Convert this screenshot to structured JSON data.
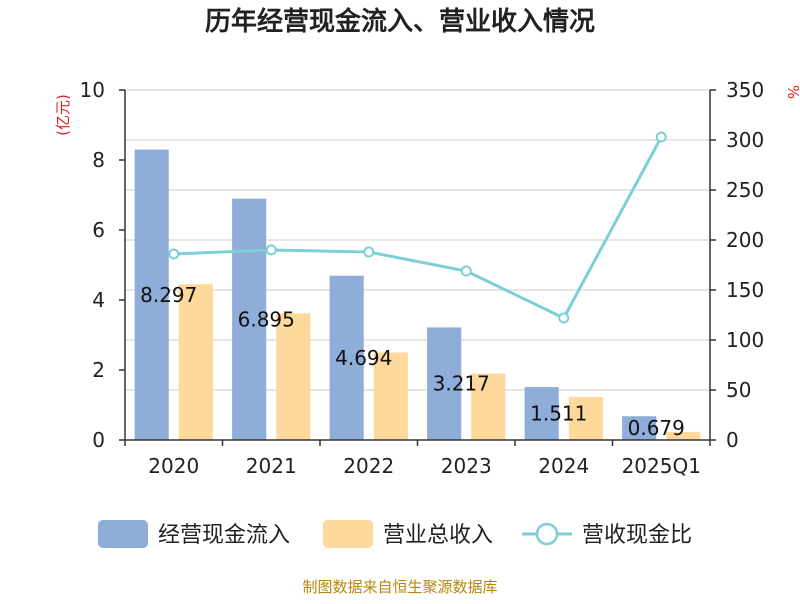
{
  "chart_data": {
    "type": "bar",
    "title": "历年经营现金流入、营业收入情况",
    "categories": [
      "2020",
      "2021",
      "2022",
      "2023",
      "2024",
      "2025Q1"
    ],
    "ylabel_left": "(亿元)",
    "ylabel_right": "%",
    "ylim_left": [
      0,
      10
    ],
    "ylim_right": [
      0,
      350
    ],
    "yticks_left": [
      "0",
      "2",
      "4",
      "6",
      "8",
      "10"
    ],
    "yticks_right": [
      "0",
      "50",
      "100",
      "150",
      "200",
      "250",
      "300",
      "350"
    ],
    "grid": true,
    "legend_position": "bottom",
    "series": [
      {
        "name": "经营现金流入",
        "type": "bar",
        "axis": "left",
        "color": "#8eadd9",
        "values": [
          8.297,
          6.895,
          4.694,
          3.217,
          1.511,
          0.679
        ],
        "labels": [
          "8.297",
          "6.895",
          "4.694",
          "3.217",
          "1.511",
          "0.679"
        ]
      },
      {
        "name": "营业总收入",
        "type": "bar",
        "axis": "left",
        "color": "#fdd99b",
        "values": [
          4.45,
          3.62,
          2.5,
          1.9,
          1.23,
          0.23
        ]
      },
      {
        "name": "营收现金比",
        "type": "line",
        "axis": "right",
        "color": "#7dcfd6",
        "values": [
          186,
          190,
          188,
          169,
          122,
          303
        ]
      }
    ]
  },
  "source": "制图数据来自恒生聚源数据库"
}
